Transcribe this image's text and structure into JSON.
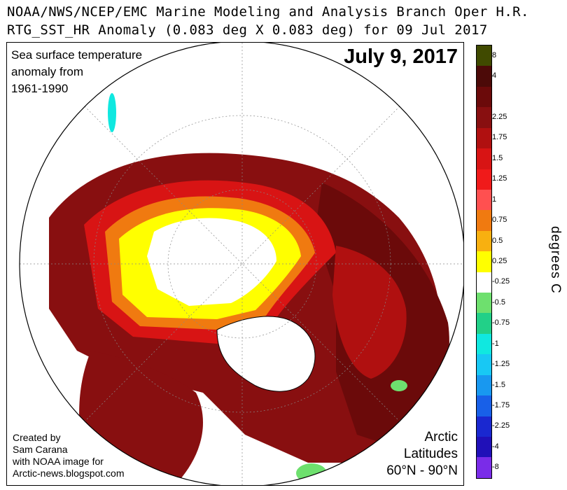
{
  "header": {
    "line1": "NOAA/NWS/NCEP/EMC Marine Modeling and Analysis Branch Oper H.R.",
    "line2": "RTG_SST_HR Anomaly (0.083 deg X 0.083 deg) for 09 Jul 2017"
  },
  "map": {
    "date_label": "July 9, 2017",
    "caption": [
      "Sea surface temperature",
      "anomaly from",
      "1961-1990"
    ],
    "credit": [
      "Created by",
      "Sam Carana",
      "with NOAA image for",
      "Arctic-news.blogspot.com"
    ],
    "region": [
      "Arctic",
      "Latitudes",
      "60°N - 90°N"
    ]
  },
  "legend": {
    "units": "degrees  C",
    "swatches": [
      {
        "label": "8",
        "color": "#404a00"
      },
      {
        "label": "4",
        "color": "#4c0a08"
      },
      {
        "label": "",
        "color": "#6b0a0a"
      },
      {
        "label": "2.25",
        "color": "#880f10"
      },
      {
        "label": "1.75",
        "color": "#b01010"
      },
      {
        "label": "1.5",
        "color": "#d81414"
      },
      {
        "label": "1.25",
        "color": "#f01a1a"
      },
      {
        "label": "1",
        "color": "#ff5050"
      },
      {
        "label": "0.75",
        "color": "#f07a10"
      },
      {
        "label": "0.5",
        "color": "#f8b010"
      },
      {
        "label": "0.25",
        "color": "#ffff00"
      },
      {
        "label": "-0.25",
        "color": "#ffffff"
      },
      {
        "label": "-0.5",
        "color": "#6ee06e"
      },
      {
        "label": "-0.75",
        "color": "#22d088"
      },
      {
        "label": "-1",
        "color": "#10e8e0"
      },
      {
        "label": "-1.25",
        "color": "#18c8f4"
      },
      {
        "label": "-1.5",
        "color": "#1898f0"
      },
      {
        "label": "-1.75",
        "color": "#1860e8"
      },
      {
        "label": "-2.25",
        "color": "#1a28d0"
      },
      {
        "label": "-4",
        "color": "#2010b8"
      },
      {
        "label": "-8",
        "color": "#7a2ce8"
      }
    ]
  }
}
